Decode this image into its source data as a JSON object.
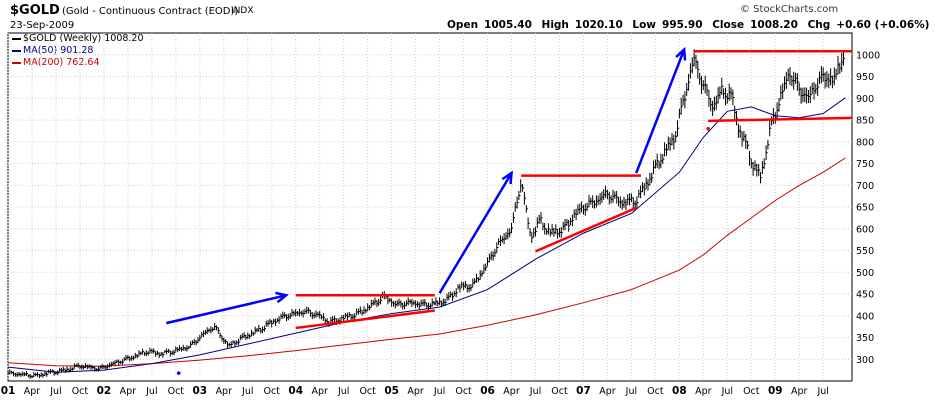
{
  "header": {
    "symbol": "$GOLD",
    "description": "(Gold - Continuous Contract (EOD))",
    "exchange": "INDX",
    "date": "23-Sep-2009",
    "brand": "© StockCharts.com",
    "open_label": "Open",
    "open": "1005.40",
    "high_label": "High",
    "high": "1020.10",
    "low_label": "Low",
    "low": "995.90",
    "close_label": "Close",
    "close": "1008.20",
    "chg_label": "Chg",
    "chg": "+0.60 (+0.06%)"
  },
  "legend": {
    "price": "$GOLD (Weekly) 1008.20",
    "ma50": "MA(50) 901.28",
    "ma200": "MA(200) 762.64"
  },
  "colors": {
    "price": "#000000",
    "ma50": "#000080",
    "ma200": "#cc0000",
    "trendline": "#ff0000",
    "arrow": "#0000ff",
    "grid": "#d0d0d0"
  },
  "chart_data": {
    "type": "line",
    "title": "$GOLD (Weekly)",
    "xlabel": "",
    "ylabel": "",
    "x_range": [
      2001.0,
      2009.8
    ],
    "ylim": [
      250,
      1050
    ],
    "y_ticks": [
      300,
      350,
      400,
      450,
      500,
      550,
      600,
      650,
      700,
      750,
      800,
      850,
      900,
      950,
      1000
    ],
    "x_ticks": [
      {
        "label": "01",
        "t": 2001.0,
        "bold": true
      },
      {
        "label": "Apr",
        "t": 2001.25
      },
      {
        "label": "Jul",
        "t": 2001.5
      },
      {
        "label": "Oct",
        "t": 2001.75
      },
      {
        "label": "02",
        "t": 2002.0,
        "bold": true
      },
      {
        "label": "Apr",
        "t": 2002.25
      },
      {
        "label": "Jul",
        "t": 2002.5
      },
      {
        "label": "Oct",
        "t": 2002.75
      },
      {
        "label": "03",
        "t": 2003.0,
        "bold": true
      },
      {
        "label": "Apr",
        "t": 2003.25
      },
      {
        "label": "Jul",
        "t": 2003.5
      },
      {
        "label": "Oct",
        "t": 2003.75
      },
      {
        "label": "04",
        "t": 2004.0,
        "bold": true
      },
      {
        "label": "Apr",
        "t": 2004.25
      },
      {
        "label": "Jul",
        "t": 2004.5
      },
      {
        "label": "Oct",
        "t": 2004.75
      },
      {
        "label": "05",
        "t": 2005.0,
        "bold": true
      },
      {
        "label": "Apr",
        "t": 2005.25
      },
      {
        "label": "Jul",
        "t": 2005.5
      },
      {
        "label": "Oct",
        "t": 2005.75
      },
      {
        "label": "06",
        "t": 2006.0,
        "bold": true
      },
      {
        "label": "Apr",
        "t": 2006.25
      },
      {
        "label": "Jul",
        "t": 2006.5
      },
      {
        "label": "Oct",
        "t": 2006.75
      },
      {
        "label": "07",
        "t": 2007.0,
        "bold": true
      },
      {
        "label": "Apr",
        "t": 2007.25
      },
      {
        "label": "Jul",
        "t": 2007.5
      },
      {
        "label": "Oct",
        "t": 2007.75
      },
      {
        "label": "08",
        "t": 2008.0,
        "bold": true
      },
      {
        "label": "Apr",
        "t": 2008.25
      },
      {
        "label": "Jul",
        "t": 2008.5
      },
      {
        "label": "Oct",
        "t": 2008.75
      },
      {
        "label": "09",
        "t": 2009.0,
        "bold": true
      },
      {
        "label": "Apr",
        "t": 2009.25
      },
      {
        "label": "Jul",
        "t": 2009.5
      }
    ],
    "grid": true,
    "legend_position": "top-left",
    "series": [
      {
        "name": "$GOLD (Weekly)",
        "style": "hlc-bars",
        "points": [
          [
            2001.0,
            268
          ],
          [
            2001.3,
            262
          ],
          [
            2001.45,
            270
          ],
          [
            2001.6,
            275
          ],
          [
            2001.75,
            285
          ],
          [
            2001.95,
            278
          ],
          [
            2002.1,
            290
          ],
          [
            2002.3,
            305
          ],
          [
            2002.45,
            318
          ],
          [
            2002.6,
            312
          ],
          [
            2002.75,
            320
          ],
          [
            2002.9,
            330
          ],
          [
            2003.05,
            360
          ],
          [
            2003.15,
            375
          ],
          [
            2003.3,
            330
          ],
          [
            2003.45,
            350
          ],
          [
            2003.6,
            365
          ],
          [
            2003.75,
            385
          ],
          [
            2003.9,
            400
          ],
          [
            2004.1,
            410
          ],
          [
            2004.25,
            400
          ],
          [
            2004.35,
            385
          ],
          [
            2004.5,
            395
          ],
          [
            2004.65,
            405
          ],
          [
            2004.8,
            425
          ],
          [
            2004.92,
            445
          ],
          [
            2005.05,
            425
          ],
          [
            2005.2,
            430
          ],
          [
            2005.35,
            425
          ],
          [
            2005.5,
            430
          ],
          [
            2005.6,
            440
          ],
          [
            2005.7,
            465
          ],
          [
            2005.85,
            470
          ],
          [
            2006.0,
            520
          ],
          [
            2006.1,
            560
          ],
          [
            2006.25,
            600
          ],
          [
            2006.35,
            710
          ],
          [
            2006.45,
            580
          ],
          [
            2006.55,
            620
          ],
          [
            2006.65,
            590
          ],
          [
            2006.8,
            600
          ],
          [
            2006.9,
            630
          ],
          [
            2007.0,
            650
          ],
          [
            2007.1,
            660
          ],
          [
            2007.25,
            680
          ],
          [
            2007.4,
            660
          ],
          [
            2007.55,
            665
          ],
          [
            2007.65,
            700
          ],
          [
            2007.8,
            760
          ],
          [
            2007.95,
            810
          ],
          [
            2008.05,
            900
          ],
          [
            2008.15,
            990
          ],
          [
            2008.25,
            930
          ],
          [
            2008.35,
            880
          ],
          [
            2008.45,
            920
          ],
          [
            2008.55,
            900
          ],
          [
            2008.62,
            830
          ],
          [
            2008.7,
            790
          ],
          [
            2008.78,
            740
          ],
          [
            2008.85,
            720
          ],
          [
            2008.95,
            830
          ],
          [
            2009.05,
            900
          ],
          [
            2009.15,
            960
          ],
          [
            2009.25,
            920
          ],
          [
            2009.35,
            900
          ],
          [
            2009.45,
            940
          ],
          [
            2009.55,
            950
          ],
          [
            2009.62,
            940
          ],
          [
            2009.7,
            1000
          ],
          [
            2009.73,
            1008
          ]
        ]
      },
      {
        "name": "MA(50)",
        "style": "line",
        "points": [
          [
            2001.0,
            282
          ],
          [
            2001.5,
            270
          ],
          [
            2002.0,
            275
          ],
          [
            2002.5,
            290
          ],
          [
            2003.0,
            310
          ],
          [
            2003.5,
            335
          ],
          [
            2004.0,
            360
          ],
          [
            2004.5,
            385
          ],
          [
            2005.0,
            405
          ],
          [
            2005.5,
            420
          ],
          [
            2006.0,
            460
          ],
          [
            2006.5,
            530
          ],
          [
            2007.0,
            590
          ],
          [
            2007.5,
            635
          ],
          [
            2008.0,
            730
          ],
          [
            2008.25,
            810
          ],
          [
            2008.5,
            870
          ],
          [
            2008.75,
            880
          ],
          [
            2009.0,
            860
          ],
          [
            2009.25,
            855
          ],
          [
            2009.5,
            865
          ],
          [
            2009.73,
            901
          ]
        ]
      },
      {
        "name": "MA(200)",
        "style": "line",
        "points": [
          [
            2001.0,
            292
          ],
          [
            2001.5,
            285
          ],
          [
            2002.0,
            284
          ],
          [
            2002.5,
            290
          ],
          [
            2003.0,
            298
          ],
          [
            2003.5,
            308
          ],
          [
            2004.0,
            320
          ],
          [
            2004.5,
            333
          ],
          [
            2005.0,
            346
          ],
          [
            2005.5,
            358
          ],
          [
            2006.0,
            378
          ],
          [
            2006.5,
            402
          ],
          [
            2007.0,
            430
          ],
          [
            2007.5,
            460
          ],
          [
            2008.0,
            505
          ],
          [
            2008.25,
            540
          ],
          [
            2008.5,
            585
          ],
          [
            2008.75,
            625
          ],
          [
            2009.0,
            665
          ],
          [
            2009.25,
            700
          ],
          [
            2009.5,
            730
          ],
          [
            2009.73,
            762.64
          ]
        ]
      }
    ],
    "annotations": {
      "trendlines": [
        [
          [
            2004.0,
            447
          ],
          [
            2005.45,
            447
          ]
        ],
        [
          [
            2004.0,
            372
          ],
          [
            2005.45,
            412
          ]
        ],
        [
          [
            2006.35,
            722
          ],
          [
            2007.6,
            722
          ]
        ],
        [
          [
            2006.5,
            548
          ],
          [
            2007.55,
            648
          ]
        ],
        [
          [
            2008.15,
            1008
          ],
          [
            2009.8,
            1008
          ]
        ],
        [
          [
            2008.3,
            848
          ],
          [
            2009.8,
            855
          ]
        ]
      ],
      "arrows": [
        [
          [
            2002.65,
            383
          ],
          [
            2003.9,
            447
          ]
        ],
        [
          [
            2005.5,
            452
          ],
          [
            2006.25,
            728
          ]
        ],
        [
          [
            2007.55,
            728
          ],
          [
            2008.05,
            1012
          ]
        ]
      ],
      "dots": [
        [
          2002.78,
          268
        ],
        [
          2008.3,
          830
        ]
      ]
    }
  }
}
